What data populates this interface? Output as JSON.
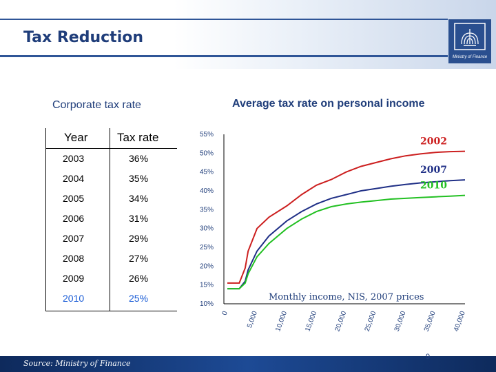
{
  "slide": {
    "title": "Tax Reduction",
    "logo_caption": "Ministry of Finance",
    "page_number": "9",
    "source": "Source: Ministry of Finance"
  },
  "corporate": {
    "title": "Corporate tax rate",
    "headers": [
      "Year",
      "Tax rate"
    ],
    "rows": [
      {
        "year": "2003",
        "rate": "36%"
      },
      {
        "year": "2004",
        "rate": "35%"
      },
      {
        "year": "2005",
        "rate": "34%"
      },
      {
        "year": "2006",
        "rate": "31%"
      },
      {
        "year": "2007",
        "rate": "29%"
      },
      {
        "year": "2008",
        "rate": "27%"
      },
      {
        "year": "2009",
        "rate": "26%"
      },
      {
        "year": "2010",
        "rate": "25%"
      }
    ],
    "highlight_color": "#1a5cd6"
  },
  "chart_data": {
    "type": "line",
    "title": "Average tax rate on personal income",
    "xlabel": "Monthly income, NIS, 2007 prices",
    "ylabel": "",
    "x": [
      0,
      2000,
      3000,
      3500,
      5000,
      7000,
      10000,
      12500,
      15000,
      17500,
      20000,
      22500,
      25000,
      27500,
      30000,
      32500,
      35000,
      37500,
      40000
    ],
    "x_ticks": [
      0,
      5000,
      10000,
      15000,
      20000,
      25000,
      30000,
      35000,
      40000
    ],
    "x_tick_labels": [
      "0",
      "5,000",
      "10,000",
      "15,000",
      "20,000",
      "25,000",
      "30,000",
      "35,000",
      "40,000"
    ],
    "y_ticks": [
      10,
      15,
      20,
      25,
      30,
      35,
      40,
      45,
      50,
      55
    ],
    "y_tick_labels": [
      "10%",
      "15%",
      "20%",
      "25%",
      "30%",
      "35%",
      "40%",
      "45%",
      "50%",
      "55%"
    ],
    "ylim": [
      10,
      55
    ],
    "xlim": [
      0,
      40000
    ],
    "series": [
      {
        "name": "2002",
        "color": "#cc1f1f",
        "values": [
          15.5,
          15.5,
          19.5,
          24,
          30,
          33,
          36,
          39,
          41.5,
          43,
          45,
          46.5,
          47.5,
          48.5,
          49.3,
          49.8,
          50.2,
          50.4,
          50.5
        ]
      },
      {
        "name": "2007",
        "color": "#1f2f86",
        "values": [
          14,
          14,
          16,
          19,
          24,
          28,
          32,
          34.5,
          36.5,
          38,
          39,
          40,
          40.6,
          41.2,
          41.7,
          42.1,
          42.4,
          42.7,
          42.9
        ]
      },
      {
        "name": "2010",
        "color": "#22c022",
        "values": [
          14,
          14,
          15.5,
          18,
          22.5,
          26,
          30,
          32.5,
          34.5,
          35.8,
          36.5,
          37,
          37.4,
          37.8,
          38,
          38.2,
          38.4,
          38.6,
          38.8
        ]
      }
    ]
  }
}
